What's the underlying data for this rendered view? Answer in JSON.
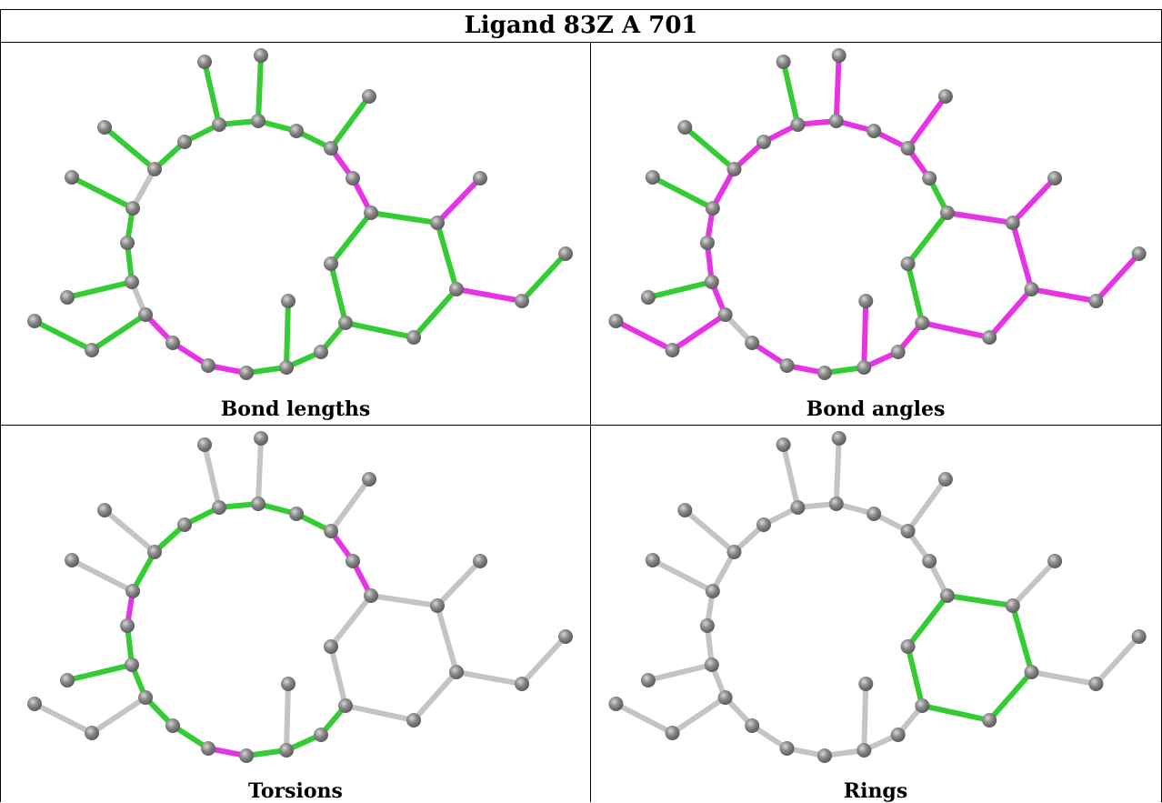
{
  "title": "Ligand 83Z A 701",
  "panels": [
    {
      "id": "bond-lengths",
      "label": "Bond lengths"
    },
    {
      "id": "bond-angles",
      "label": "Bond angles"
    },
    {
      "id": "torsions",
      "label": "Torsions"
    },
    {
      "id": "rings",
      "label": "Rings"
    }
  ],
  "colors": {
    "green": "#33cc33",
    "magenta": "#e633e6",
    "grey": "#c4c4c4",
    "atom": "#888888"
  }
}
